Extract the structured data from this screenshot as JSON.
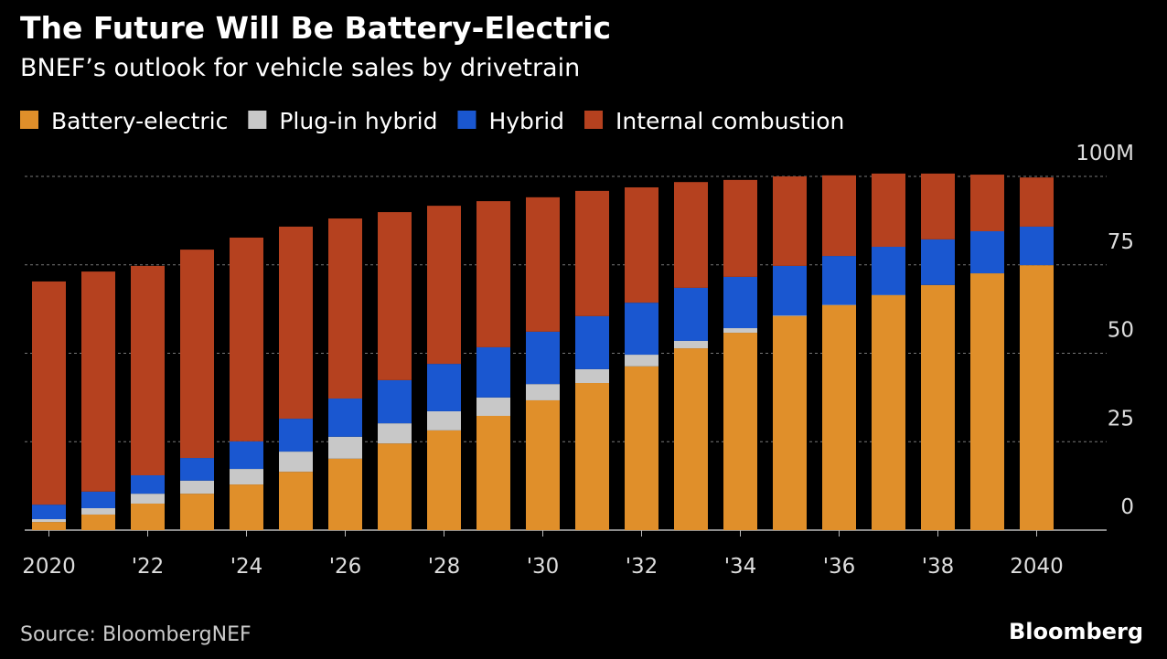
{
  "chart_data": {
    "type": "stacked_bar",
    "title": "The Future Will Be Battery-Electric",
    "subtitle": "BNEF’s outlook for vehicle sales by drivetrain",
    "source": "Source: BloombergNEF",
    "brand": "Bloomberg",
    "categories": [
      "2020",
      null,
      "'22",
      null,
      "'24",
      null,
      "'26",
      null,
      "'28",
      null,
      "'30",
      null,
      "'32",
      null,
      "'34",
      null,
      "'36",
      null,
      "'38",
      null,
      "2040"
    ],
    "series": [
      {
        "name": "Battery-electric",
        "color": "#e08f2a",
        "values": [
          2.3,
          4.4,
          7.5,
          10.3,
          12.9,
          16.5,
          20.2,
          24.5,
          28.2,
          32.3,
          36.7,
          41.6,
          46.3,
          51.4,
          55.8,
          60.5,
          63.6,
          66.4,
          69.3,
          72.6,
          74.9
        ]
      },
      {
        "name": "Plug-in hybrid",
        "color": "#c8c8c8",
        "values": [
          0.8,
          1.8,
          2.8,
          3.7,
          4.4,
          5.7,
          6.2,
          5.7,
          5.4,
          5.2,
          4.6,
          3.9,
          3.3,
          2.1,
          1.3,
          0.2,
          0.1,
          0.1,
          0,
          0,
          0
        ]
      },
      {
        "name": "Hybrid",
        "color": "#1a57d0",
        "values": [
          4.1,
          4.7,
          5.2,
          6.4,
          7.8,
          9.3,
          10.8,
          12.2,
          13.4,
          14.2,
          14.8,
          15,
          14.7,
          15,
          14.5,
          14,
          13.8,
          13.6,
          12.9,
          11.9,
          10.9
        ]
      },
      {
        "name": "Internal combustion",
        "color": "#b5411f",
        "values": [
          63.1,
          62.2,
          59.2,
          58.9,
          57.6,
          54.3,
          50.9,
          47.5,
          44.7,
          41.3,
          38,
          35.4,
          32.6,
          29.9,
          27.4,
          25.3,
          22.8,
          20.7,
          18.6,
          16,
          13.9
        ]
      }
    ],
    "ylim": [
      0,
      100
    ],
    "yticks": [
      0,
      25,
      50,
      75,
      {
        "value": 100,
        "label": "100M"
      }
    ],
    "grid": true
  }
}
